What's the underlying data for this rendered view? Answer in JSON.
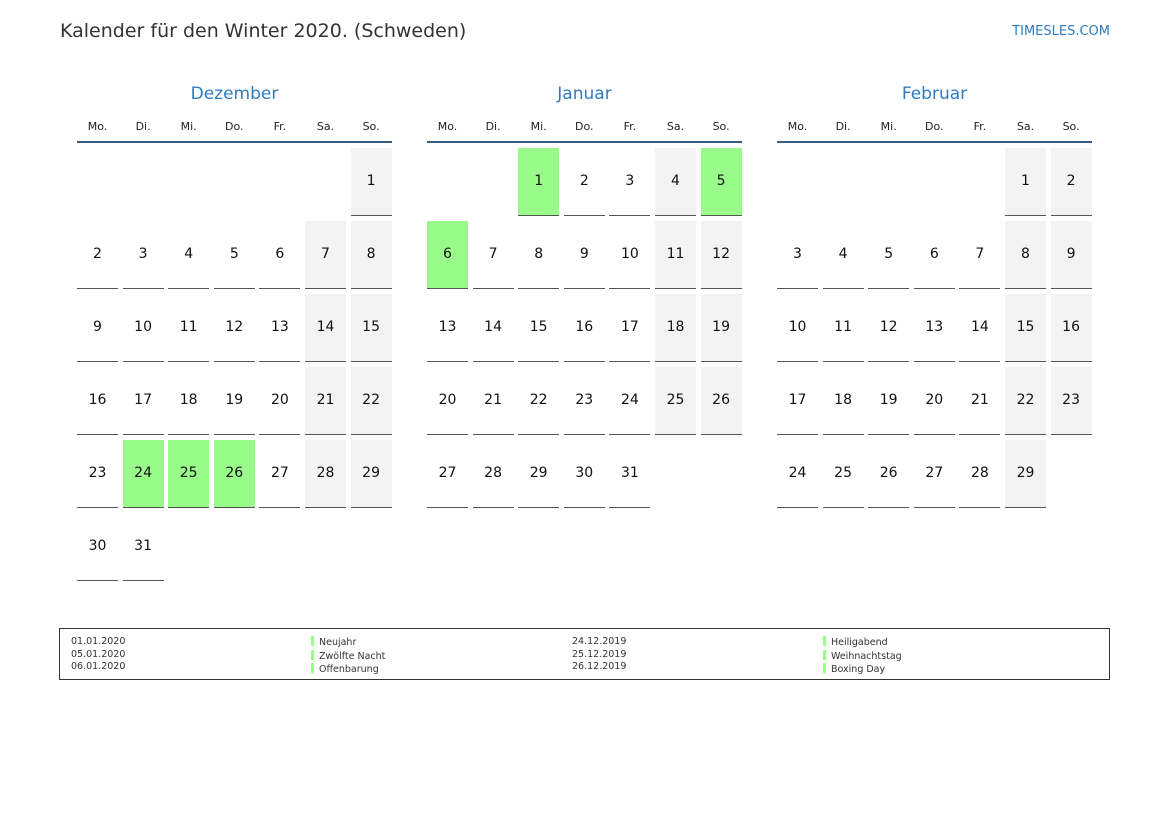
{
  "header": {
    "title": "Kalender für den Winter 2020. (Schweden)",
    "site": "TIMESLES.COM"
  },
  "colors": {
    "accent": "#2f7bc1",
    "holiday": "#99fb8a",
    "weekend": "#f3f3f3",
    "rule": "#3b5a80"
  },
  "weekdays": [
    "Mo.",
    "Di.",
    "Mi.",
    "Do.",
    "Fr.",
    "Sa.",
    "So."
  ],
  "months": [
    {
      "name": "Dezember",
      "holidays": [
        24,
        25,
        26
      ],
      "weeks": [
        [
          null,
          null,
          null,
          null,
          null,
          null,
          1
        ],
        [
          2,
          3,
          4,
          5,
          6,
          7,
          8
        ],
        [
          9,
          10,
          11,
          12,
          13,
          14,
          15
        ],
        [
          16,
          17,
          18,
          19,
          20,
          21,
          22
        ],
        [
          23,
          24,
          25,
          26,
          27,
          28,
          29
        ],
        [
          30,
          31,
          null,
          null,
          null,
          null,
          null
        ]
      ]
    },
    {
      "name": "Januar",
      "holidays": [
        1,
        5,
        6
      ],
      "weeks": [
        [
          null,
          null,
          1,
          2,
          3,
          4,
          5
        ],
        [
          6,
          7,
          8,
          9,
          10,
          11,
          12
        ],
        [
          13,
          14,
          15,
          16,
          17,
          18,
          19
        ],
        [
          20,
          21,
          22,
          23,
          24,
          25,
          26
        ],
        [
          27,
          28,
          29,
          30,
          31,
          null,
          null
        ]
      ]
    },
    {
      "name": "Februar",
      "holidays": [],
      "weeks": [
        [
          null,
          null,
          null,
          null,
          null,
          1,
          2
        ],
        [
          3,
          4,
          5,
          6,
          7,
          8,
          9
        ],
        [
          10,
          11,
          12,
          13,
          14,
          15,
          16
        ],
        [
          17,
          18,
          19,
          20,
          21,
          22,
          23
        ],
        [
          24,
          25,
          26,
          27,
          28,
          29,
          null
        ]
      ]
    }
  ],
  "legend": {
    "left": [
      {
        "date": "01.01.2020",
        "name": "Neujahr"
      },
      {
        "date": "05.01.2020",
        "name": "Zwölfte Nacht"
      },
      {
        "date": "06.01.2020",
        "name": "Offenbarung"
      }
    ],
    "right": [
      {
        "date": "24.12.2019",
        "name": "Heiligabend"
      },
      {
        "date": "25.12.2019",
        "name": "Weihnachtstag"
      },
      {
        "date": "26.12.2019",
        "name": "Boxing Day"
      }
    ]
  }
}
